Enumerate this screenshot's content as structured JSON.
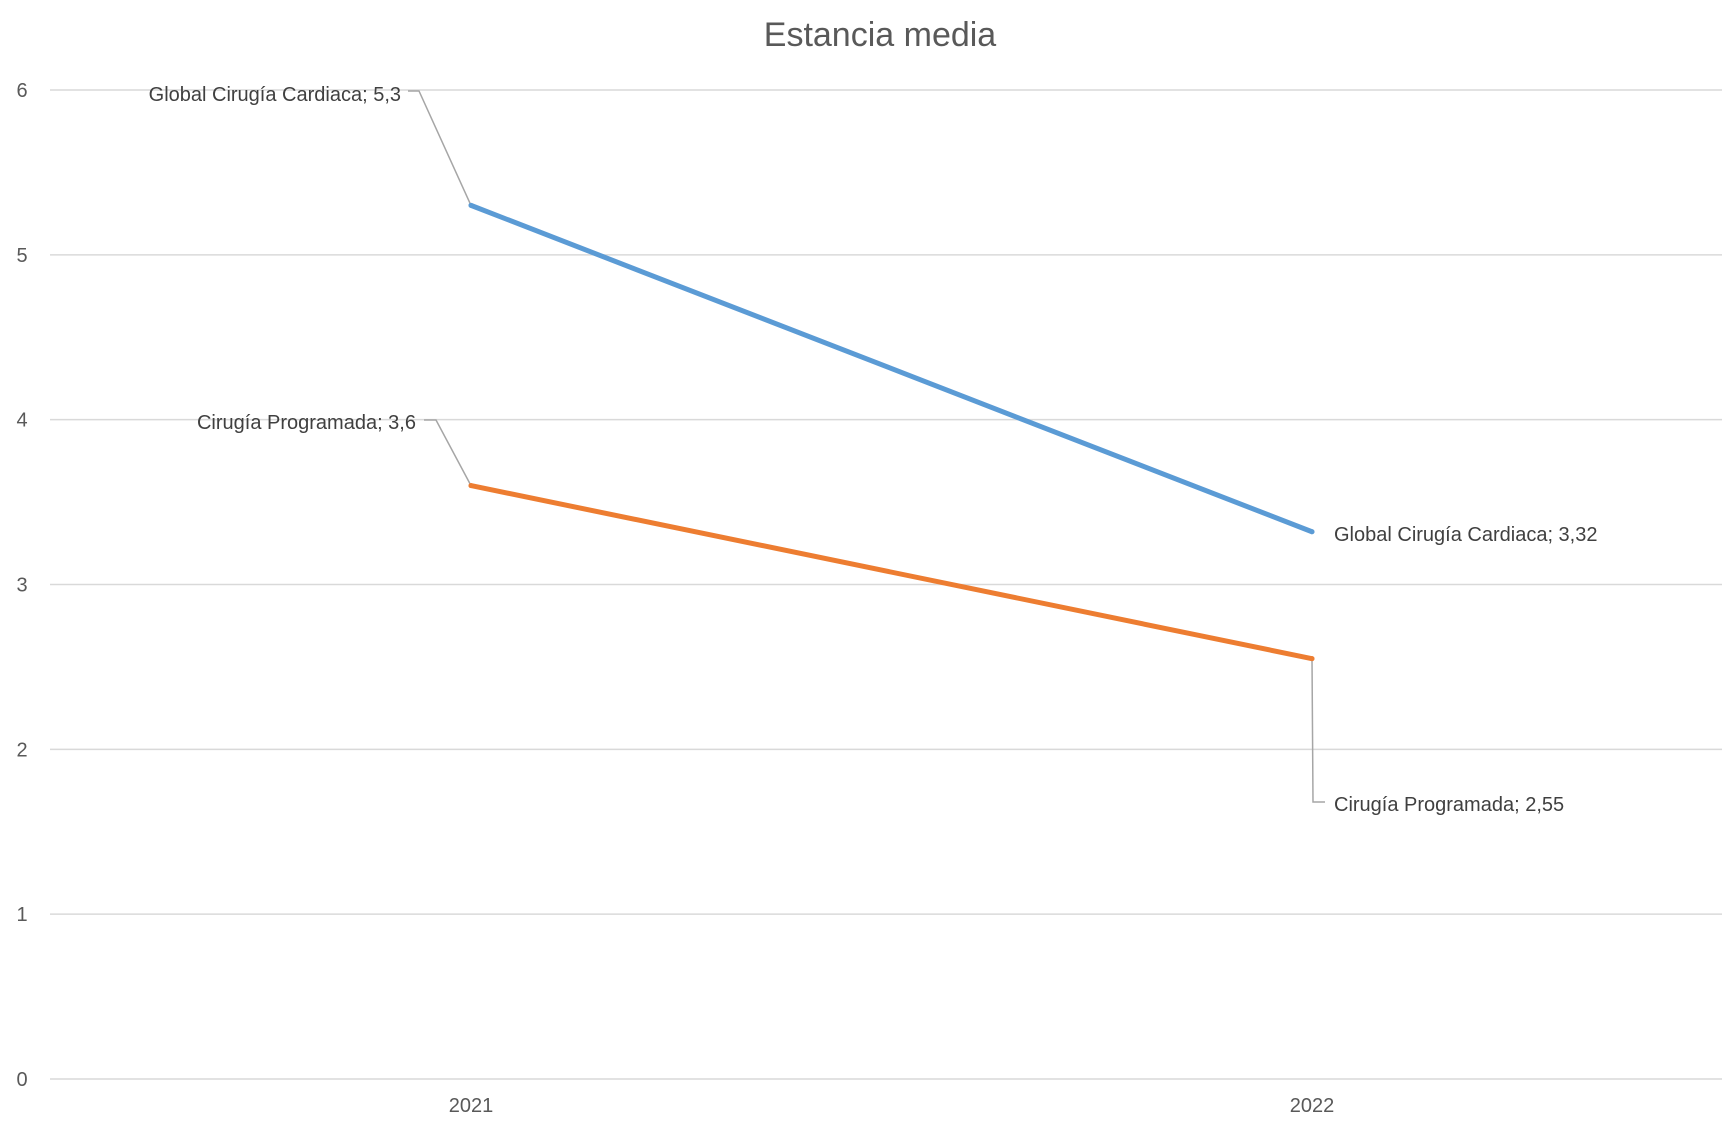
{
  "chart_data": {
    "type": "line",
    "title": "Estancia media",
    "xlabel": "",
    "ylabel": "",
    "categories": [
      "2021",
      "2022"
    ],
    "ylim": [
      0,
      6
    ],
    "yticks": [
      "0",
      "1",
      "2",
      "3",
      "4",
      "5",
      "6"
    ],
    "grid": true,
    "legend": "none",
    "series": [
      {
        "name": "Global Cirugía Cardiaca",
        "values": [
          5.3,
          3.32
        ],
        "color": "#5b9bd5",
        "data_labels": [
          "Global Cirugía Cardiaca; 5,3",
          "Global Cirugía Cardiaca; 3,32"
        ]
      },
      {
        "name": "Cirugía Programada",
        "values": [
          3.6,
          2.55
        ],
        "color": "#ed7d31",
        "data_labels": [
          "Cirugía Programada; 3,6",
          "Cirugía Programada; 2,55"
        ]
      }
    ],
    "leader_color": "#a6a6a6",
    "grid_color": "#d9d9d9"
  }
}
